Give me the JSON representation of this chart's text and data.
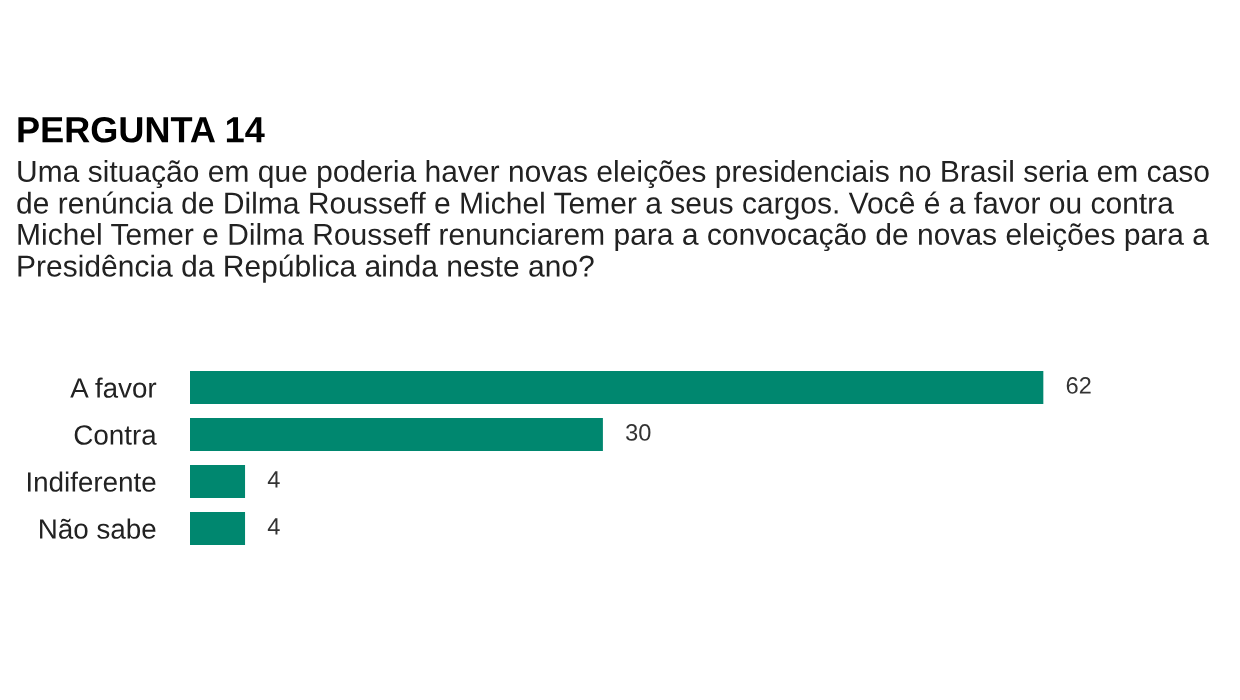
{
  "chart_data": {
    "type": "bar",
    "orientation": "horizontal",
    "title": "PERGUNTA 14",
    "subtitle": "Uma situação em que poderia haver novas eleições presidenciais no Brasil seria em caso de renúncia de Dilma Rousseff e Michel Temer a seus cargos. Você é a favor ou contra Michel Temer e Dilma Rousseff renunciarem para a convocação de novas eleições para a Presidência da República ainda neste ano?",
    "categories": [
      "A favor",
      "Contra",
      "Indiferente",
      "Não sabe"
    ],
    "values": [
      62,
      30,
      4,
      4
    ],
    "color": "#00876f",
    "data_labels": true,
    "grid": false,
    "legend": false
  }
}
